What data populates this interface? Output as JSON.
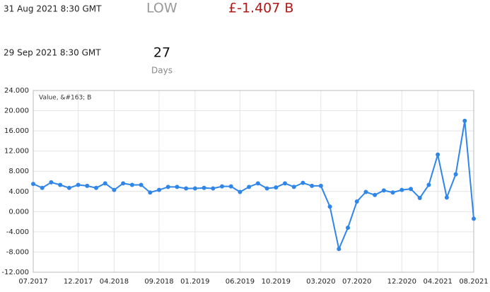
{
  "info": {
    "date1": "31 Aug 2021 8:30 GMT",
    "level": "LOW",
    "amount": "£-1.407 B",
    "date2": "29 Sep 2021 8:30 GMT",
    "count": "27",
    "unit": "Days"
  },
  "chart_data": {
    "type": "line",
    "categories": [
      "07.2017",
      null,
      null,
      null,
      null,
      "12.2017",
      null,
      null,
      null,
      "04.2018",
      null,
      null,
      null,
      null,
      "09.2018",
      null,
      null,
      null,
      "01.2019",
      null,
      null,
      null,
      null,
      "06.2019",
      null,
      null,
      null,
      "10.2019",
      null,
      null,
      null,
      null,
      "03.2020",
      null,
      null,
      null,
      "07.2020",
      null,
      null,
      null,
      null,
      "12.2020",
      null,
      null,
      null,
      "04.2021",
      null,
      null,
      null,
      "08.2021"
    ],
    "series": [
      {
        "name": "Value, &#163; B",
        "color": "#2f86e8",
        "values": [
          5.5,
          4.7,
          5.8,
          5.3,
          4.7,
          5.3,
          5.1,
          4.7,
          5.6,
          4.3,
          5.6,
          5.3,
          5.3,
          3.8,
          4.3,
          4.9,
          4.9,
          4.6,
          4.6,
          4.7,
          4.6,
          5.0,
          5.0,
          3.9,
          4.9,
          5.6,
          4.6,
          4.8,
          5.6,
          4.9,
          5.7,
          5.1,
          5.1,
          1.0,
          -7.4,
          -3.2,
          2.0,
          3.9,
          3.3,
          4.2,
          3.8,
          4.3,
          4.5,
          2.7,
          5.3,
          11.3,
          2.8,
          7.4,
          18.0,
          -1.4
        ]
      }
    ],
    "ylim": [
      -12,
      24
    ],
    "yticks": [
      {
        "value": -12,
        "label": "-12.000"
      },
      {
        "value": -8,
        "label": "-8.000"
      },
      {
        "value": -4,
        "label": "-4.000"
      },
      {
        "value": 0,
        "label": "0.000"
      },
      {
        "value": 4,
        "label": "4.000"
      },
      {
        "value": 8,
        "label": "8.000"
      },
      {
        "value": 12,
        "label": "12.000"
      },
      {
        "value": 16,
        "label": "16.000"
      },
      {
        "value": 20,
        "label": "20.000"
      },
      {
        "value": 24,
        "label": "24.000"
      }
    ],
    "grid": true
  }
}
